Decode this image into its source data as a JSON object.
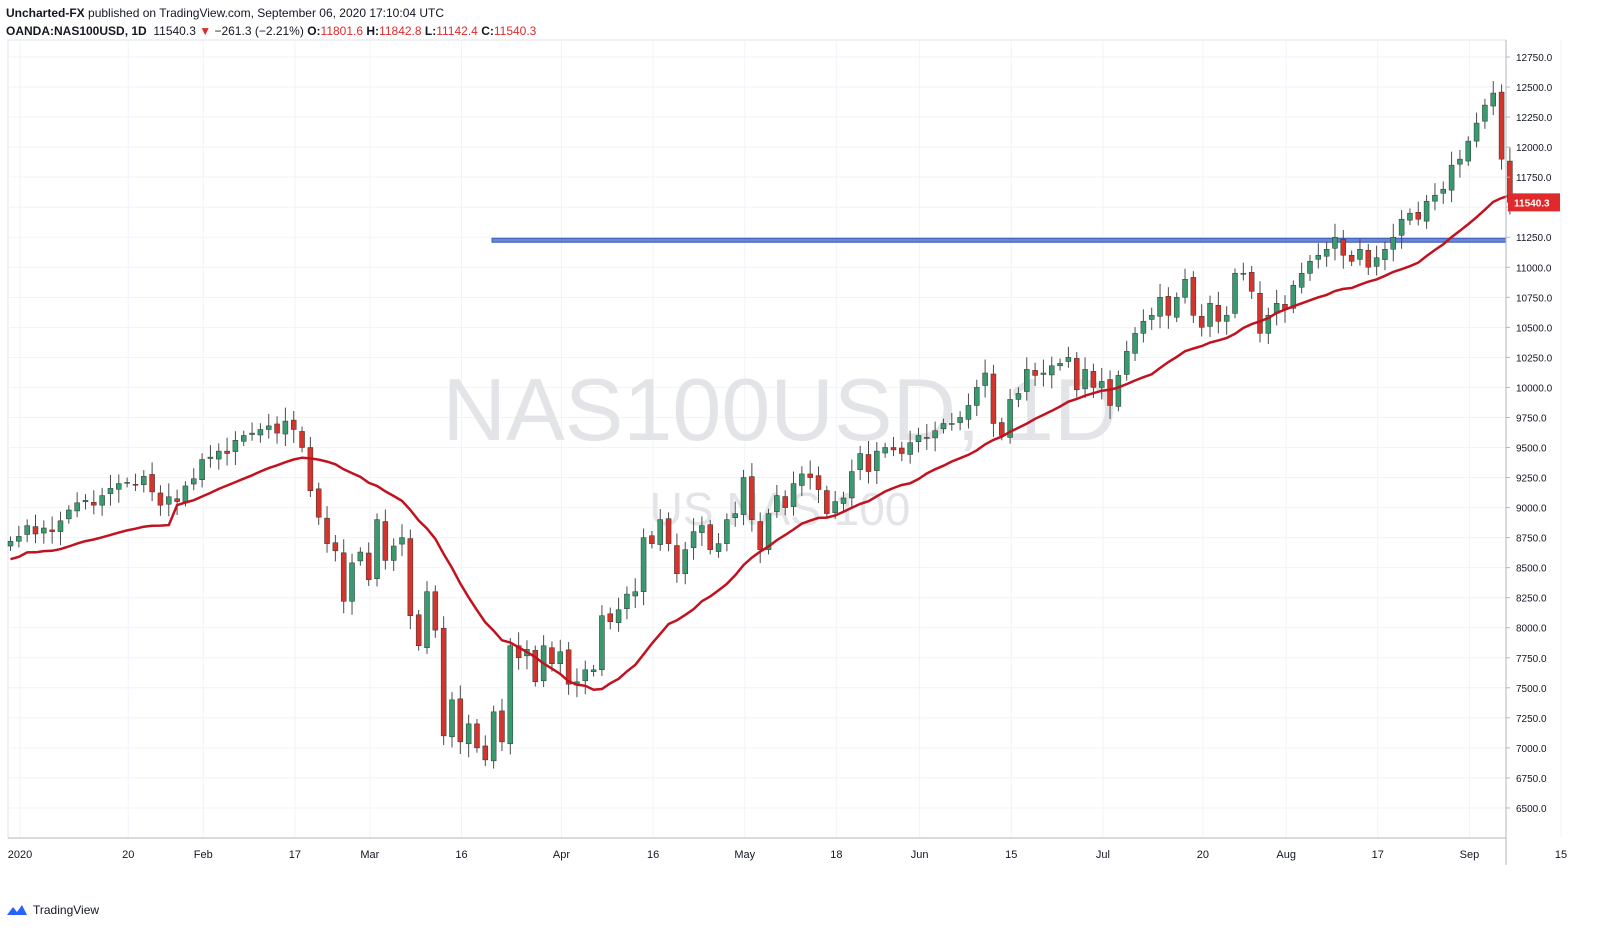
{
  "header": {
    "publisher": "Uncharted-FX",
    "published_text": "published on TradingView.com, September 06, 2020 17:10:04 UTC",
    "symbol": "OANDA:NAS100USD, 1D",
    "last": "11540.3",
    "change_arrow": "▼",
    "change": "−261.3 (−2.21%)",
    "o_label": "O:",
    "o_value": "11801.6",
    "h_label": "H:",
    "h_value": "11842.8",
    "l_label": "L:",
    "l_value": "11142.4",
    "c_label": "C:",
    "c_value": "11540.3"
  },
  "footer": {
    "brand": "TradingView"
  },
  "chart_data": {
    "type": "candlestick",
    "watermark": "NAS100USD, 1D",
    "watermark_sub": "US NAS 100",
    "ylim": [
      6250,
      12850
    ],
    "y_ticks": [
      6500,
      6750,
      7000,
      7250,
      7500,
      7750,
      8000,
      8250,
      8500,
      8750,
      9000,
      9250,
      9500,
      9750,
      10000,
      10250,
      10500,
      10750,
      11000,
      11250,
      11500,
      11750,
      12000,
      12250,
      12500,
      12750
    ],
    "x_ticks": [
      {
        "label": "2020",
        "index": 0
      },
      {
        "label": "20",
        "index": 13
      },
      {
        "label": "Feb",
        "index": 22
      },
      {
        "label": "17",
        "index": 33
      },
      {
        "label": "Mar",
        "index": 42
      },
      {
        "label": "16",
        "index": 53
      },
      {
        "label": "Apr",
        "index": 65
      },
      {
        "label": "16",
        "index": 76
      },
      {
        "label": "May",
        "index": 87
      },
      {
        "label": "18",
        "index": 98
      },
      {
        "label": "Jun",
        "index": 108
      },
      {
        "label": "15",
        "index": 119
      },
      {
        "label": "Jul",
        "index": 130
      },
      {
        "label": "20",
        "index": 142
      },
      {
        "label": "Aug",
        "index": 152
      },
      {
        "label": "17",
        "index": 163
      },
      {
        "label": "Sep",
        "index": 174
      },
      {
        "label": "15",
        "index": 185
      }
    ],
    "last_price_label": "11540.3",
    "horizontal_level": 11225,
    "colors": {
      "up": "#3a9a6f",
      "down": "#d3342b",
      "ma": "#c1121f",
      "level": "#3b5ab5",
      "axis_label_bg": "#e0292b"
    },
    "closes": [
      8720,
      8760,
      8850,
      8780,
      8830,
      8800,
      8890,
      8980,
      9040,
      9060,
      9020,
      9100,
      9160,
      9200,
      9210,
      9190,
      9260,
      9130,
      9020,
      9090,
      9050,
      9180,
      9240,
      9400,
      9420,
      9470,
      9450,
      9560,
      9600,
      9620,
      9650,
      9680,
      9620,
      9720,
      9650,
      9500,
      9140,
      8920,
      8700,
      8640,
      8220,
      8540,
      8630,
      8400,
      8900,
      8560,
      8680,
      8750,
      8100,
      7850,
      8300,
      7980,
      7100,
      7400,
      7050,
      7200,
      7000,
      6900,
      7300,
      7050,
      7850,
      7750,
      7820,
      7550,
      7850,
      7700,
      7800,
      7530,
      7550,
      7650,
      7650,
      8100,
      8050,
      8150,
      8280,
      8300,
      8750,
      8700,
      8900,
      8700,
      8450,
      8650,
      8800,
      8850,
      8650,
      8700,
      8900,
      8950,
      9250,
      8900,
      8650,
      8950,
      9100,
      9000,
      9200,
      9280,
      9250,
      9150,
      8950,
      9050,
      9080,
      9300,
      9450,
      9300,
      9470,
      9500,
      9480,
      9450,
      9540,
      9600,
      9580,
      9640,
      9700,
      9700,
      9750,
      9850,
      10000,
      10120,
      9700,
      9600,
      9900,
      9950,
      10150,
      10100,
      10120,
      10180,
      10200,
      10250,
      9980,
      10150,
      10000,
      10050,
      9850,
      10100,
      10300,
      10450,
      10550,
      10600,
      10750,
      10600,
      10750,
      10900,
      10600,
      10500,
      10700,
      10550,
      10600,
      10950,
      10950,
      10800,
      10450,
      10600,
      10700,
      10650,
      10850,
      10950,
      11050,
      11100,
      11150,
      11250,
      11100,
      11050,
      11150,
      11000,
      11080,
      11150,
      11250,
      11400,
      11450,
      11400,
      11550,
      11600,
      11650,
      11850,
      11900,
      12050,
      12200,
      12350,
      12450,
      11900,
      11540
    ]
  }
}
